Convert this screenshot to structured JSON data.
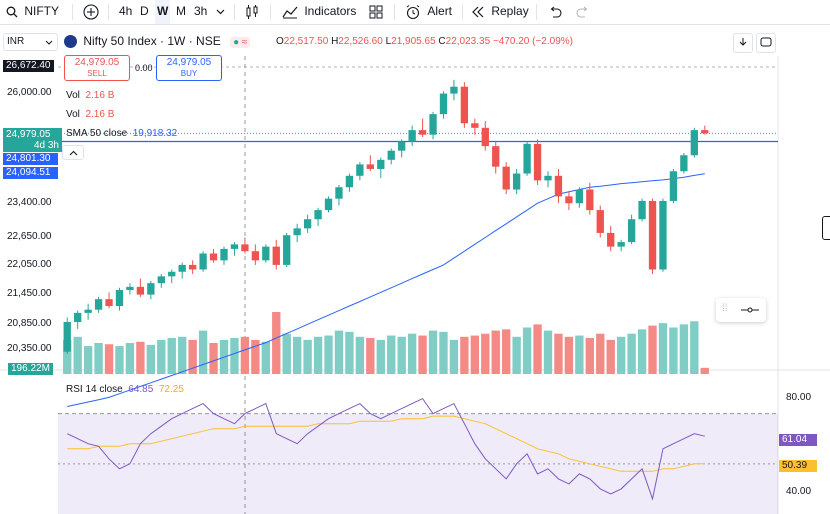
{
  "toolbar": {
    "symbol": "NIFTY",
    "intervals": [
      "4h",
      "D",
      "W",
      "M",
      "3h"
    ],
    "active_interval": "W",
    "indicators_label": "Indicators",
    "alert_label": "Alert",
    "replay_label": "Replay"
  },
  "header": {
    "currency": "INR",
    "title": "Nifty 50 Index · 1W · NSE",
    "ohlc": {
      "o_label": "O",
      "o": "22,517.50",
      "h_label": "H",
      "h": "22,526.60",
      "l_label": "L",
      "l": "21,905.65",
      "c_label": "C",
      "c": "22,023.35",
      "change": "−470.20 (−2.09%)"
    },
    "sell_price": "24,979.05",
    "sell_label": "SELL",
    "spread": "0.00",
    "buy_price": "24,979.05",
    "buy_label": "BUY"
  },
  "legend": {
    "vol1": "Vol",
    "vol1_val": "2.16 B",
    "vol2": "Vol",
    "vol2_val": "2.16 B",
    "sma": "SMA 50 close",
    "sma_val": "19,918.32"
  },
  "price_axis": {
    "top_tag": "26,672.40",
    "ticks": [
      "26,000.00",
      "23,400.00",
      "22,650.00",
      "22,050.00",
      "21,450.00",
      "20,850.00",
      "20,350.00"
    ],
    "last_price": "24,979.05",
    "countdown": "4d 3h",
    "line_price": "24,801.30",
    "sma_price": "24,094.51",
    "vol_tag": "196.22M"
  },
  "rsi": {
    "label": "RSI 14 close",
    "value": "64.85",
    "ma_value": "72.25",
    "tick_top": "80.00",
    "tick_bottom": "40.00",
    "tag_rsi": "61.04",
    "tag_ma": "50.39"
  },
  "colors": {
    "up": "#26a69a",
    "down": "#ef5350",
    "sma": "#2962ff",
    "rsi": "#7e57c2",
    "rsi_ma": "#fbc02d",
    "hline": "#2962ff"
  },
  "chart_data": {
    "type": "candlestick",
    "candles": [
      [
        20200,
        20950,
        20150,
        20850
      ],
      [
        20850,
        21100,
        20700,
        21050
      ],
      [
        21050,
        21250,
        20900,
        21120
      ],
      [
        21120,
        21400,
        21050,
        21350
      ],
      [
        21350,
        21500,
        21150,
        21200
      ],
      [
        21200,
        21600,
        21100,
        21550
      ],
      [
        21550,
        21700,
        21450,
        21620
      ],
      [
        21620,
        21800,
        21400,
        21450
      ],
      [
        21450,
        21750,
        21350,
        21700
      ],
      [
        21700,
        21900,
        21600,
        21850
      ],
      [
        21850,
        22000,
        21700,
        21950
      ],
      [
        21950,
        22150,
        21800,
        22100
      ],
      [
        22100,
        22200,
        21900,
        22000
      ],
      [
        22000,
        22400,
        21950,
        22350
      ],
      [
        22350,
        22450,
        22150,
        22200
      ],
      [
        22200,
        22500,
        22100,
        22450
      ],
      [
        22450,
        22600,
        22300,
        22550
      ],
      [
        22550,
        22700,
        22350,
        22400
      ],
      [
        22400,
        22550,
        22100,
        22200
      ],
      [
        22200,
        22550,
        22150,
        22500
      ],
      [
        22500,
        22650,
        22000,
        22100
      ],
      [
        22100,
        22800,
        22050,
        22750
      ],
      [
        22750,
        23000,
        22600,
        22900
      ],
      [
        22900,
        23200,
        22800,
        23100
      ],
      [
        23100,
        23350,
        22950,
        23300
      ],
      [
        23300,
        23600,
        23250,
        23550
      ],
      [
        23550,
        23850,
        23400,
        23800
      ],
      [
        23800,
        24100,
        23700,
        24050
      ],
      [
        24050,
        24350,
        23950,
        24300
      ],
      [
        24300,
        24500,
        24150,
        24200
      ],
      [
        24200,
        24450,
        24000,
        24400
      ],
      [
        24400,
        24650,
        24300,
        24600
      ],
      [
        24600,
        24850,
        24450,
        24800
      ],
      [
        24800,
        25150,
        24700,
        25050
      ],
      [
        25050,
        25300,
        24900,
        24950
      ],
      [
        24950,
        25450,
        24850,
        25400
      ],
      [
        25400,
        25900,
        25300,
        25850
      ],
      [
        25850,
        26150,
        25700,
        26000
      ],
      [
        26000,
        26100,
        25100,
        25200
      ],
      [
        25200,
        25300,
        24950,
        25100
      ],
      [
        25100,
        25250,
        24600,
        24700
      ],
      [
        24700,
        24800,
        24100,
        24250
      ],
      [
        24250,
        24350,
        23650,
        23750
      ],
      [
        23750,
        24200,
        23650,
        24100
      ],
      [
        24100,
        24800,
        24050,
        24750
      ],
      [
        24750,
        24850,
        23850,
        23950
      ],
      [
        23950,
        24150,
        23800,
        24050
      ],
      [
        24050,
        24200,
        23450,
        23600
      ],
      [
        23600,
        23700,
        23300,
        23450
      ],
      [
        23450,
        23800,
        23350,
        23750
      ],
      [
        23750,
        23900,
        23200,
        23300
      ],
      [
        23300,
        23400,
        22700,
        22800
      ],
      [
        22800,
        22950,
        22400,
        22500
      ],
      [
        22500,
        22650,
        22400,
        22600
      ],
      [
        22600,
        23200,
        22550,
        23100
      ],
      [
        23100,
        23550,
        23050,
        23500
      ],
      [
        23500,
        23550,
        21900,
        22000
      ],
      [
        22000,
        23550,
        21950,
        23500
      ],
      [
        23500,
        24200,
        23450,
        24150
      ],
      [
        24150,
        24550,
        24100,
        24500
      ],
      [
        24500,
        25100,
        24450,
        25050
      ],
      [
        25050,
        25150,
        24950,
        24980
      ]
    ],
    "volume": [
      0.55,
      0.6,
      0.45,
      0.5,
      0.48,
      0.45,
      0.5,
      0.52,
      0.47,
      0.55,
      0.58,
      0.6,
      0.55,
      0.7,
      0.5,
      0.55,
      0.58,
      0.6,
      0.55,
      0.52,
      1.0,
      0.65,
      0.6,
      0.55,
      0.6,
      0.62,
      0.7,
      0.68,
      0.6,
      0.58,
      0.55,
      0.62,
      0.6,
      0.65,
      0.62,
      0.7,
      0.68,
      0.55,
      0.6,
      0.62,
      0.65,
      0.7,
      0.72,
      0.6,
      0.75,
      0.8,
      0.7,
      0.65,
      0.6,
      0.62,
      0.58,
      0.65,
      0.55,
      0.6,
      0.65,
      0.72,
      0.78,
      0.82,
      0.75,
      0.8,
      0.85,
      0.1
    ],
    "sma50": [
      19000,
      19050,
      19100,
      19150,
      19200,
      19280,
      19360,
      19440,
      19520,
      19600,
      19680,
      19760,
      19840,
      19920,
      20000,
      20080,
      20160,
      20240,
      20320,
      20400,
      20500,
      20600,
      20700,
      20800,
      20900,
      21000,
      21100,
      21200,
      21300,
      21400,
      21500,
      21600,
      21700,
      21800,
      21900,
      22000,
      22100,
      22250,
      22400,
      22550,
      22700,
      22850,
      23000,
      23150,
      23300,
      23450,
      23550,
      23650,
      23700,
      23750,
      23800,
      23820,
      23850,
      23880,
      23900,
      23920,
      23940,
      23960,
      23990,
      24020,
      24060,
      24094
    ],
    "rsi": [
      62,
      60,
      58,
      57,
      52,
      48,
      50,
      58,
      62,
      65,
      68,
      70,
      72,
      74,
      70,
      68,
      66,
      70,
      72,
      74,
      62,
      60,
      58,
      62,
      65,
      68,
      70,
      72,
      74,
      70,
      68,
      70,
      72,
      74,
      76,
      70,
      72,
      74,
      66,
      58,
      52,
      48,
      44,
      50,
      54,
      46,
      48,
      44,
      42,
      46,
      44,
      40,
      38,
      40,
      44,
      48,
      36,
      56,
      58,
      60,
      62,
      61
    ],
    "rsi_ma": [
      56,
      56,
      56,
      57,
      57,
      57,
      58,
      58,
      58,
      59,
      60,
      61,
      62,
      63,
      64,
      64,
      64,
      65,
      65,
      65,
      65,
      65,
      65,
      65,
      66,
      66,
      66,
      66,
      67,
      67,
      67,
      67,
      68,
      68,
      68,
      69,
      69,
      69,
      68,
      67,
      66,
      64,
      62,
      60,
      58,
      56,
      55,
      54,
      52,
      51,
      50,
      49,
      48,
      47,
      47,
      47,
      47,
      48,
      48,
      49,
      50,
      50
    ],
    "ylim": [
      20150,
      26672.4
    ],
    "rsi_ylim": [
      30,
      85
    ]
  }
}
